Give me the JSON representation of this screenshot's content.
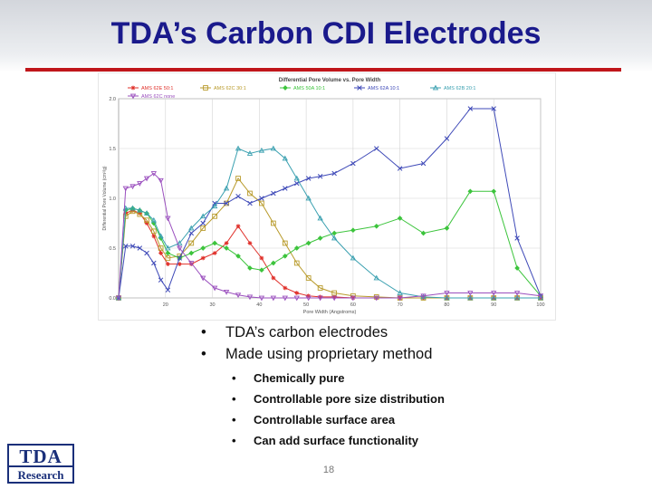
{
  "slide": {
    "title": "TDA’s Carbon CDI Electrodes",
    "accent_color": "#c0161b",
    "title_color": "#1a1a8c",
    "bullets": [
      "TDA’s carbon electrodes",
      "Made using proprietary method"
    ],
    "sub_bullets": [
      "Chemically pure",
      "Controllable pore size distribution",
      "Controllable surface area",
      "Can add surface functionality"
    ],
    "bullet_glyph": "•",
    "page_number": "18",
    "logo": {
      "line1": "TDA",
      "line2": "Research"
    }
  },
  "chart_data": {
    "type": "line",
    "title": "Differential Pore Volume vs. Pore Width",
    "xlabel": "Pore Width (Angstroms)",
    "ylabel": "Differential Pore Volume (cm³/g)",
    "xlim": [
      10,
      100
    ],
    "ylim": [
      0,
      2.0
    ],
    "x_ticks": [
      20,
      30,
      40,
      50,
      60,
      70,
      80,
      90,
      100
    ],
    "y_ticks": [
      "0.0",
      "0.5",
      "1.0",
      "1.5",
      "2.0"
    ],
    "grid": true,
    "legend_position": "top",
    "series": [
      {
        "name": "AMS 62E 50:1",
        "color": "#e0302a",
        "marker": "star",
        "points": [
          [
            10.0,
            0.0
          ],
          [
            11.5,
            0.85
          ],
          [
            13.0,
            0.88
          ],
          [
            14.5,
            0.85
          ],
          [
            16.0,
            0.75
          ],
          [
            17.5,
            0.62
          ],
          [
            19.0,
            0.45
          ],
          [
            20.5,
            0.34
          ],
          [
            23.0,
            0.34
          ],
          [
            25.5,
            0.34
          ],
          [
            28.0,
            0.4
          ],
          [
            30.5,
            0.45
          ],
          [
            33.0,
            0.55
          ],
          [
            35.5,
            0.72
          ],
          [
            38.0,
            0.55
          ],
          [
            40.5,
            0.4
          ],
          [
            43.0,
            0.2
          ],
          [
            45.5,
            0.1
          ],
          [
            48.0,
            0.05
          ],
          [
            50.5,
            0.02
          ],
          [
            53.0,
            0.01
          ],
          [
            56.0,
            0.01
          ],
          [
            60.0,
            0.0
          ],
          [
            65.0,
            0.0
          ],
          [
            70.0,
            0.0
          ],
          [
            75.0,
            0.0
          ],
          [
            80.0,
            0.0
          ],
          [
            85.0,
            0.0
          ],
          [
            90.0,
            0.0
          ],
          [
            95.0,
            0.0
          ],
          [
            100.0,
            0.0
          ]
        ]
      },
      {
        "name": "AMS 62C 30:1",
        "color": "#b89a2a",
        "marker": "square",
        "points": [
          [
            10.0,
            0.0
          ],
          [
            11.5,
            0.82
          ],
          [
            13.0,
            0.87
          ],
          [
            14.5,
            0.84
          ],
          [
            16.0,
            0.78
          ],
          [
            17.5,
            0.67
          ],
          [
            19.0,
            0.5
          ],
          [
            20.5,
            0.4
          ],
          [
            23.0,
            0.42
          ],
          [
            25.5,
            0.55
          ],
          [
            28.0,
            0.7
          ],
          [
            30.5,
            0.82
          ],
          [
            33.0,
            0.95
          ],
          [
            35.5,
            1.2
          ],
          [
            38.0,
            1.05
          ],
          [
            40.5,
            0.95
          ],
          [
            43.0,
            0.75
          ],
          [
            45.5,
            0.55
          ],
          [
            48.0,
            0.35
          ],
          [
            50.5,
            0.2
          ],
          [
            53.0,
            0.1
          ],
          [
            56.0,
            0.05
          ],
          [
            60.0,
            0.02
          ],
          [
            65.0,
            0.01
          ],
          [
            70.0,
            0.0
          ],
          [
            75.0,
            0.0
          ],
          [
            80.0,
            0.0
          ],
          [
            85.0,
            0.0
          ],
          [
            90.0,
            0.0
          ],
          [
            95.0,
            0.0
          ],
          [
            100.0,
            0.0
          ]
        ]
      },
      {
        "name": "AMS 50A 10:1",
        "color": "#3cc43c",
        "marker": "diamond",
        "points": [
          [
            10.0,
            0.0
          ],
          [
            11.5,
            0.88
          ],
          [
            13.0,
            0.9
          ],
          [
            14.5,
            0.88
          ],
          [
            16.0,
            0.85
          ],
          [
            17.5,
            0.75
          ],
          [
            19.0,
            0.6
          ],
          [
            20.5,
            0.45
          ],
          [
            23.0,
            0.4
          ],
          [
            25.5,
            0.45
          ],
          [
            28.0,
            0.5
          ],
          [
            30.5,
            0.55
          ],
          [
            33.0,
            0.5
          ],
          [
            35.5,
            0.42
          ],
          [
            38.0,
            0.3
          ],
          [
            40.5,
            0.28
          ],
          [
            43.0,
            0.35
          ],
          [
            45.5,
            0.42
          ],
          [
            48.0,
            0.5
          ],
          [
            50.5,
            0.55
          ],
          [
            53.0,
            0.6
          ],
          [
            56.0,
            0.65
          ],
          [
            60.0,
            0.68
          ],
          [
            65.0,
            0.72
          ],
          [
            70.0,
            0.8
          ],
          [
            75.0,
            0.65
          ],
          [
            80.0,
            0.7
          ],
          [
            85.0,
            1.07
          ],
          [
            90.0,
            1.07
          ],
          [
            95.0,
            0.3
          ],
          [
            100.0,
            0.02
          ]
        ]
      },
      {
        "name": "AMS 62A 10:1",
        "color": "#3f4ab8",
        "marker": "x",
        "points": [
          [
            10.0,
            0.0
          ],
          [
            11.5,
            0.52
          ],
          [
            13.0,
            0.52
          ],
          [
            14.5,
            0.5
          ],
          [
            16.0,
            0.45
          ],
          [
            17.5,
            0.35
          ],
          [
            19.0,
            0.18
          ],
          [
            20.5,
            0.08
          ],
          [
            23.0,
            0.4
          ],
          [
            25.5,
            0.65
          ],
          [
            28.0,
            0.75
          ],
          [
            30.5,
            0.95
          ],
          [
            33.0,
            0.95
          ],
          [
            35.5,
            1.02
          ],
          [
            38.0,
            0.95
          ],
          [
            40.5,
            1.0
          ],
          [
            43.0,
            1.05
          ],
          [
            45.5,
            1.1
          ],
          [
            48.0,
            1.15
          ],
          [
            50.5,
            1.2
          ],
          [
            53.0,
            1.22
          ],
          [
            56.0,
            1.25
          ],
          [
            60.0,
            1.35
          ],
          [
            65.0,
            1.5
          ],
          [
            70.0,
            1.3
          ],
          [
            75.0,
            1.35
          ],
          [
            80.0,
            1.6
          ],
          [
            85.0,
            1.9
          ],
          [
            90.0,
            1.9
          ],
          [
            95.0,
            0.6
          ],
          [
            100.0,
            0.02
          ]
        ]
      },
      {
        "name": "AMS 62B 20:1",
        "color": "#3aa0b0",
        "marker": "triangle",
        "points": [
          [
            10.0,
            0.0
          ],
          [
            11.5,
            0.9
          ],
          [
            13.0,
            0.9
          ],
          [
            14.5,
            0.88
          ],
          [
            16.0,
            0.85
          ],
          [
            17.5,
            0.78
          ],
          [
            19.0,
            0.62
          ],
          [
            20.5,
            0.5
          ],
          [
            23.0,
            0.55
          ],
          [
            25.5,
            0.7
          ],
          [
            28.0,
            0.82
          ],
          [
            30.5,
            0.92
          ],
          [
            33.0,
            1.1
          ],
          [
            35.5,
            1.5
          ],
          [
            38.0,
            1.45
          ],
          [
            40.5,
            1.48
          ],
          [
            43.0,
            1.5
          ],
          [
            45.5,
            1.4
          ],
          [
            48.0,
            1.2
          ],
          [
            50.5,
            1.0
          ],
          [
            53.0,
            0.8
          ],
          [
            56.0,
            0.6
          ],
          [
            60.0,
            0.4
          ],
          [
            65.0,
            0.2
          ],
          [
            70.0,
            0.05
          ],
          [
            75.0,
            0.01
          ],
          [
            80.0,
            0.0
          ],
          [
            85.0,
            0.0
          ],
          [
            90.0,
            0.0
          ],
          [
            95.0,
            0.0
          ],
          [
            100.0,
            0.0
          ]
        ]
      },
      {
        "name": "AMS 62C none",
        "color": "#9a4fbe",
        "marker": "triangle-down",
        "points": [
          [
            10.0,
            0.0
          ],
          [
            11.5,
            1.1
          ],
          [
            13.0,
            1.12
          ],
          [
            14.5,
            1.15
          ],
          [
            16.0,
            1.2
          ],
          [
            17.5,
            1.25
          ],
          [
            19.0,
            1.18
          ],
          [
            20.5,
            0.8
          ],
          [
            23.0,
            0.5
          ],
          [
            25.5,
            0.35
          ],
          [
            28.0,
            0.2
          ],
          [
            30.5,
            0.1
          ],
          [
            33.0,
            0.06
          ],
          [
            35.5,
            0.03
          ],
          [
            38.0,
            0.01
          ],
          [
            40.5,
            0.0
          ],
          [
            43.0,
            0.0
          ],
          [
            45.5,
            0.0
          ],
          [
            48.0,
            0.0
          ],
          [
            50.5,
            0.0
          ],
          [
            53.0,
            0.0
          ],
          [
            56.0,
            0.0
          ],
          [
            60.0,
            0.0
          ],
          [
            65.0,
            0.0
          ],
          [
            70.0,
            0.0
          ],
          [
            75.0,
            0.02
          ],
          [
            80.0,
            0.05
          ],
          [
            85.0,
            0.05
          ],
          [
            90.0,
            0.05
          ],
          [
            95.0,
            0.05
          ],
          [
            100.0,
            0.02
          ]
        ]
      }
    ]
  }
}
